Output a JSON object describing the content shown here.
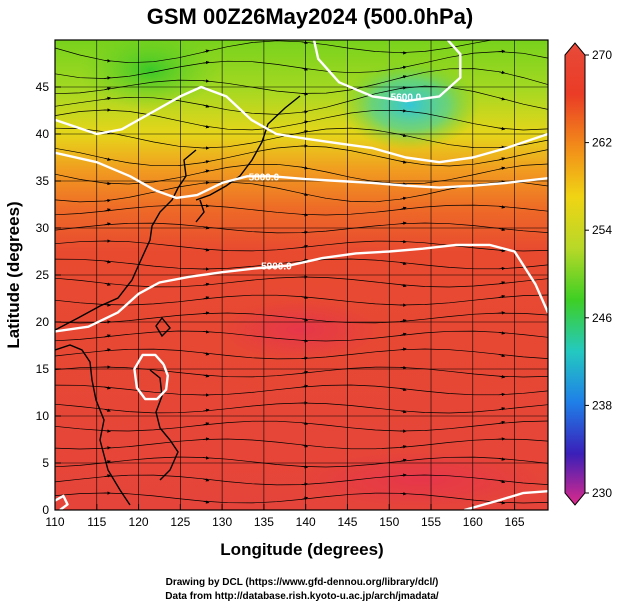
{
  "chart_data": {
    "type": "heatmap",
    "title": "GSM 00Z26May2024 (500.0hPa)",
    "xlabel": "Longitude (degrees)",
    "ylabel": "Latitude  (degrees)",
    "xlim": [
      110,
      169
    ],
    "ylim": [
      0,
      50
    ],
    "x_ticks": [
      110,
      115,
      120,
      125,
      130,
      135,
      140,
      145,
      150,
      155,
      160,
      165
    ],
    "y_ticks": [
      0,
      5,
      10,
      15,
      20,
      25,
      30,
      35,
      40,
      45
    ],
    "grid": true,
    "shaded_variable_range": [
      230,
      270
    ],
    "colorbar_ticks": [
      270,
      262,
      254,
      246,
      238,
      230
    ],
    "colorbar_colors": [
      "#dd2a8a",
      "#3a1fb8",
      "#1f7fe8",
      "#24c9c0",
      "#3ecf24",
      "#b8d828",
      "#f0d414",
      "#f28a1a",
      "#ea3c26",
      "#e84a3a"
    ],
    "contour_labels": [
      {
        "text": "5800.0",
        "lon": 135.0,
        "lat": 35.5
      },
      {
        "text": "5900.0",
        "lon": 136.5,
        "lat": 26.0
      },
      {
        "text": "5600.0",
        "lon": 152.0,
        "lat": 44.0
      }
    ],
    "contours": [
      {
        "name": "5600",
        "points": [
          [
            141.0,
            50.0
          ],
          [
            141.5,
            48.0
          ],
          [
            144.0,
            45.5
          ],
          [
            148.0,
            44.0
          ],
          [
            152.0,
            43.5
          ],
          [
            156.0,
            44.0
          ],
          [
            158.5,
            46.0
          ],
          [
            158.5,
            48.5
          ],
          [
            157.0,
            50.0
          ]
        ]
      },
      {
        "name": "5700",
        "points": [
          [
            110.0,
            41.5
          ],
          [
            115.0,
            40.0
          ],
          [
            118.0,
            40.5
          ],
          [
            122.0,
            42.5
          ],
          [
            125.0,
            44.0
          ],
          [
            127.5,
            45.0
          ],
          [
            130.5,
            44.0
          ],
          [
            133.5,
            41.5
          ],
          [
            136.5,
            40.0
          ],
          [
            140.0,
            39.5
          ],
          [
            144.0,
            39.0
          ],
          [
            148.0,
            38.5
          ],
          [
            152.0,
            37.5
          ],
          [
            156.0,
            37.0
          ],
          [
            160.0,
            37.5
          ],
          [
            164.0,
            38.5
          ],
          [
            169.0,
            40.0
          ]
        ]
      },
      {
        "name": "5800",
        "points": [
          [
            110.0,
            38.0
          ],
          [
            115.0,
            37.0
          ],
          [
            119.0,
            35.5
          ],
          [
            122.0,
            34.0
          ],
          [
            124.5,
            33.2
          ],
          [
            127.0,
            33.5
          ],
          [
            130.0,
            34.8
          ],
          [
            133.0,
            35.5
          ],
          [
            136.0,
            35.5
          ],
          [
            140.0,
            35.2
          ],
          [
            144.0,
            35.0
          ],
          [
            148.0,
            34.8
          ],
          [
            152.0,
            34.5
          ],
          [
            156.0,
            34.3
          ],
          [
            160.0,
            34.5
          ],
          [
            164.0,
            34.8
          ],
          [
            169.0,
            35.3
          ]
        ]
      },
      {
        "name": "5900a",
        "points": [
          [
            110.0,
            19.0
          ],
          [
            114.0,
            19.5
          ],
          [
            117.5,
            21.0
          ],
          [
            120.0,
            23.0
          ],
          [
            122.5,
            24.2
          ],
          [
            126.0,
            24.8
          ],
          [
            130.0,
            25.3
          ],
          [
            134.0,
            25.7
          ],
          [
            138.0,
            26.0
          ],
          [
            142.0,
            26.8
          ],
          [
            146.0,
            27.3
          ],
          [
            150.0,
            27.5
          ],
          [
            154.0,
            27.8
          ],
          [
            158.0,
            28.2
          ],
          [
            162.0,
            28.2
          ],
          [
            165.0,
            27.5
          ],
          [
            167.5,
            24.0
          ],
          [
            169.0,
            21.0
          ]
        ]
      },
      {
        "name": "5900b",
        "points": [
          [
            123.0,
            15.5
          ],
          [
            122.0,
            16.5
          ],
          [
            120.5,
            16.5
          ],
          [
            119.5,
            15.0
          ],
          [
            119.8,
            13.0
          ],
          [
            120.8,
            11.8
          ],
          [
            122.2,
            11.8
          ],
          [
            123.3,
            12.8
          ],
          [
            123.5,
            14.3
          ],
          [
            123.0,
            15.5
          ]
        ]
      },
      {
        "name": "5900c",
        "points": [
          [
            110.0,
            1.0
          ],
          [
            111.0,
            1.5
          ],
          [
            111.5,
            0.6
          ],
          [
            110.6,
            0.0
          ]
        ]
      },
      {
        "name": "5900d",
        "points": [
          [
            159.0,
            0.0
          ],
          [
            163.0,
            1.0
          ],
          [
            166.0,
            1.8
          ],
          [
            169.0,
            2.0
          ]
        ]
      }
    ],
    "credit_lines": [
      "Drawing by DCL (https://www.gfd-dennou.org/library/dcl/)",
      "Data from http://database.rish.kyoto-u.ac.jp/arch/jmadata/"
    ]
  }
}
